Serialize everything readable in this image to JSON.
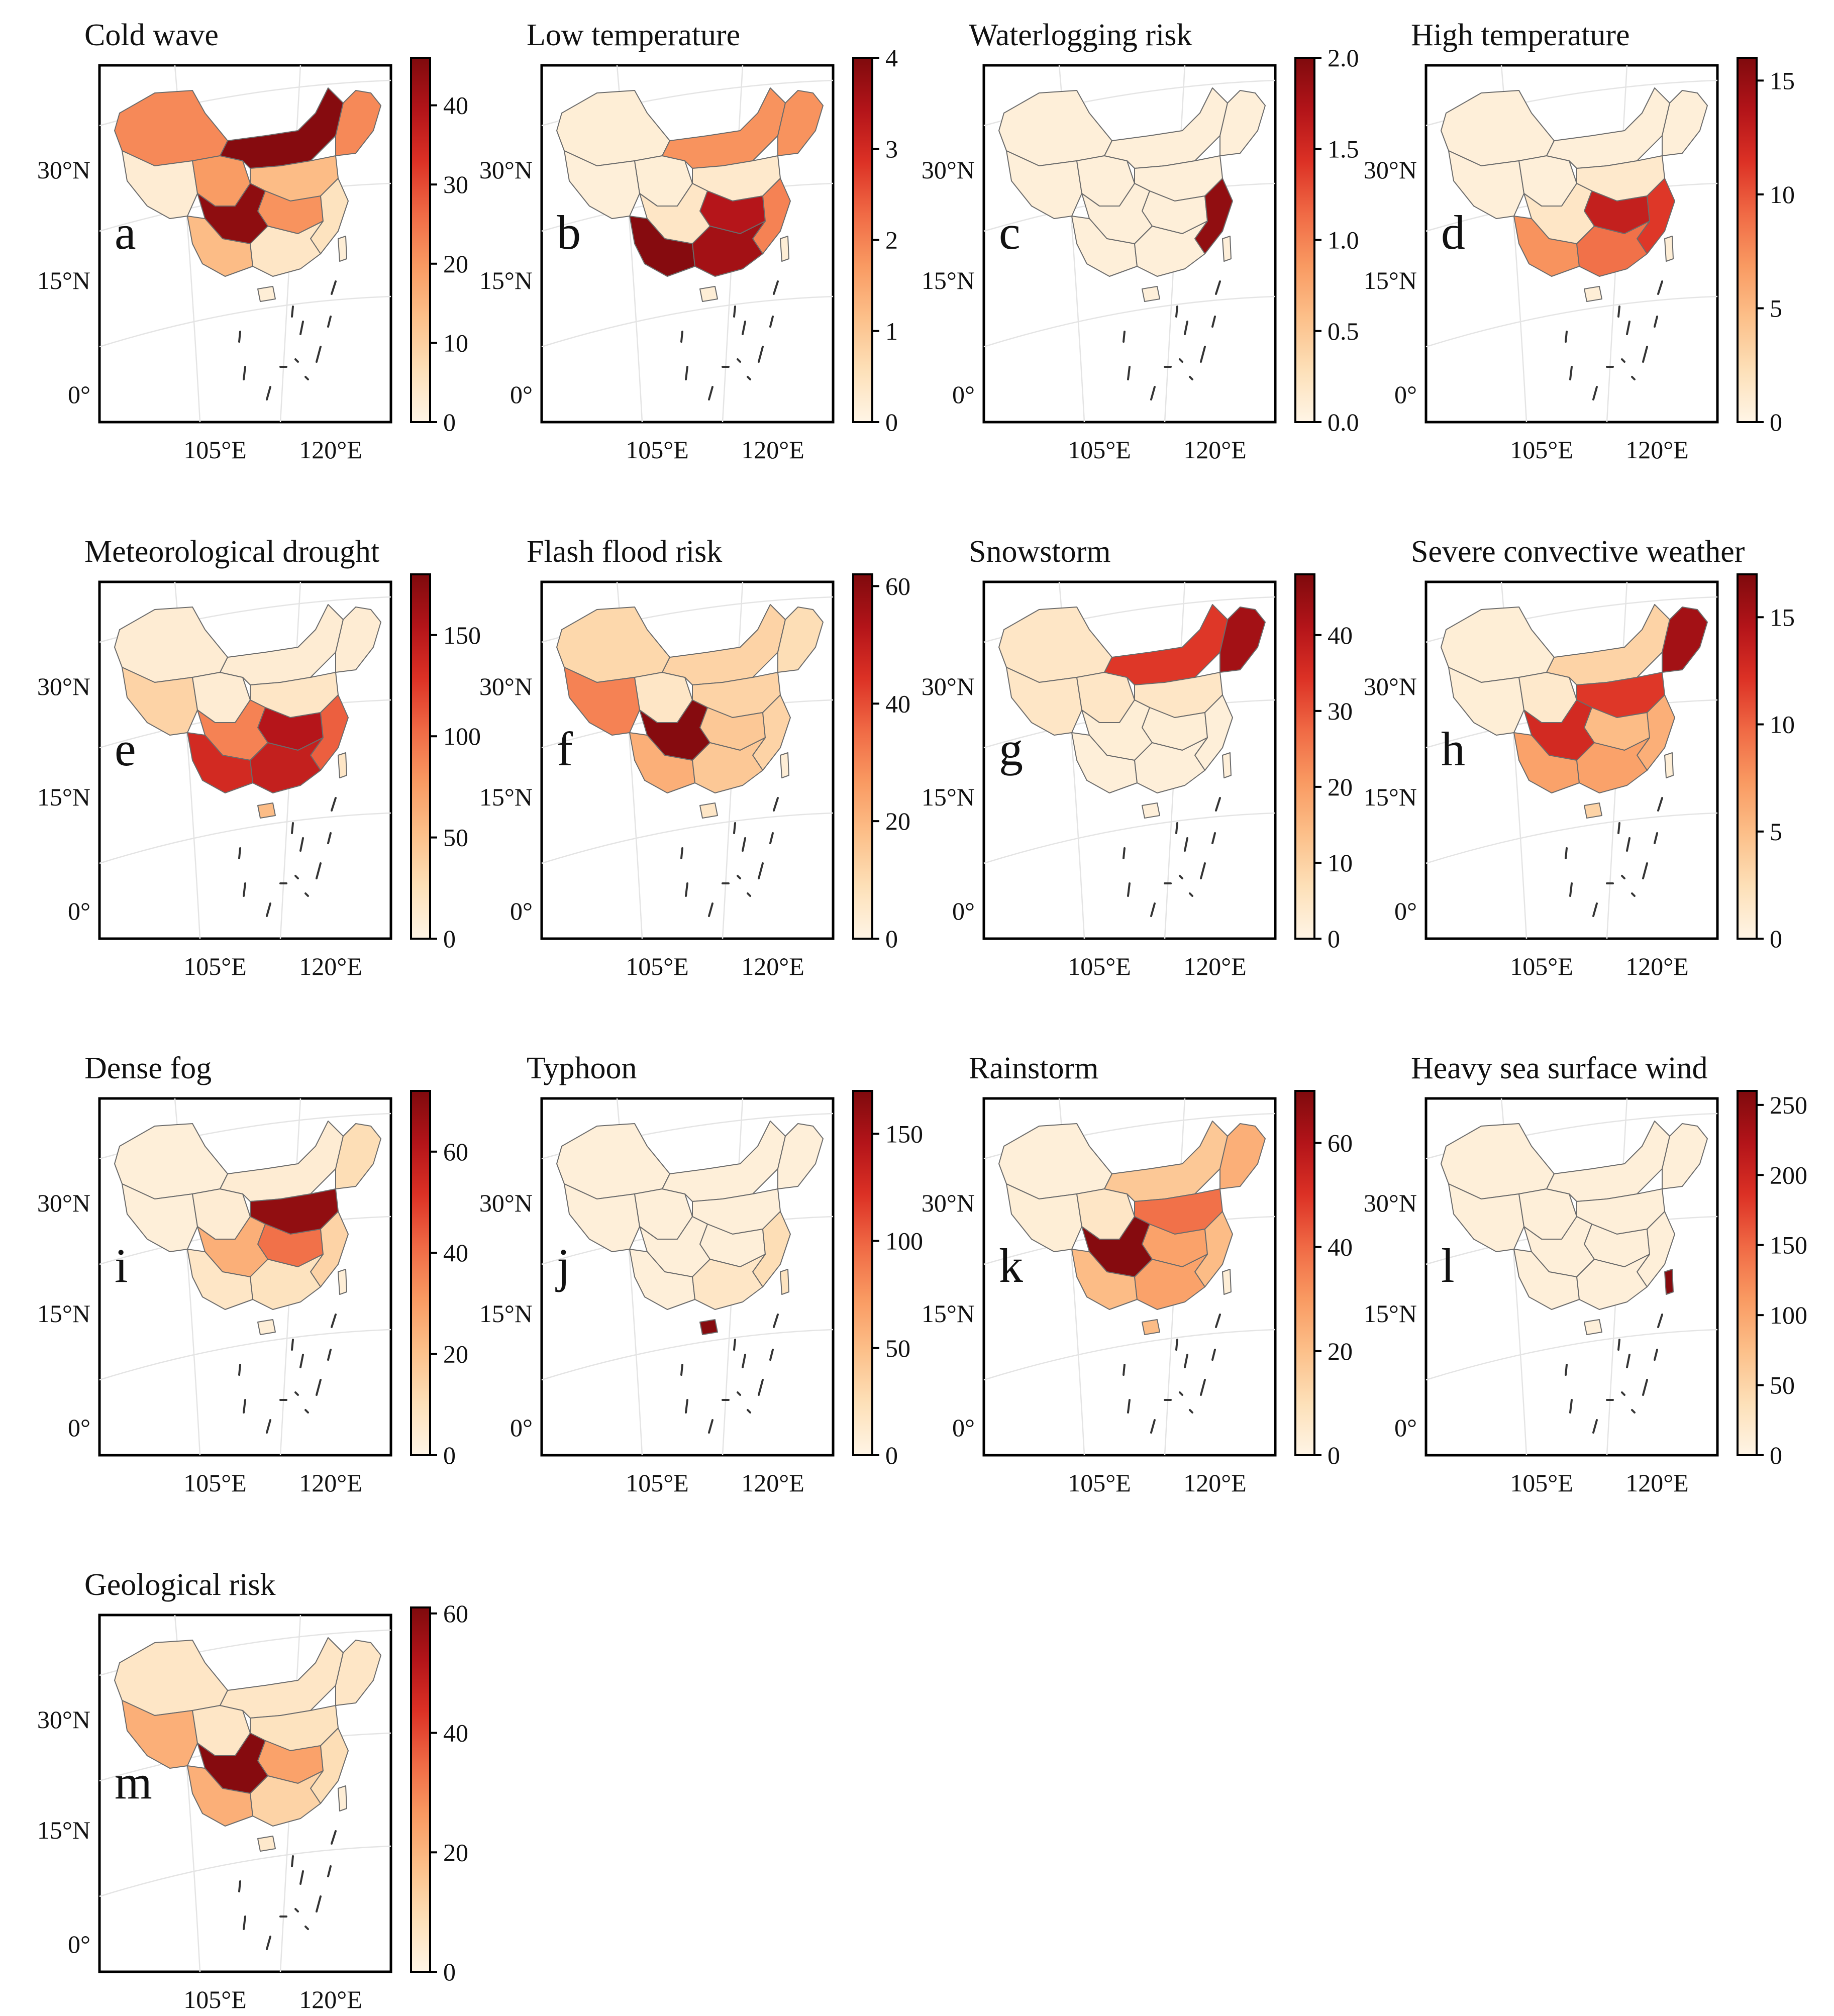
{
  "figure": {
    "axis_labels": {
      "lat": [
        "30°N",
        "15°N",
        "0°"
      ],
      "lon": [
        "105°E",
        "120°E"
      ]
    },
    "colormap": [
      "#fff5e6",
      "#fde0b8",
      "#fcc08a",
      "#f99a62",
      "#f06a45",
      "#dc3125",
      "#b31419",
      "#7f0a0d"
    ],
    "region_names": [
      "northwest",
      "tibet",
      "qinghai",
      "inner-mongolia",
      "northeast",
      "north-china",
      "central",
      "sichuan",
      "yunnan-guizhou",
      "southeast-coast",
      "south",
      "hainan",
      "taiwan"
    ],
    "panels": [
      {
        "letter": "a",
        "title": "Cold wave",
        "max": 46,
        "ticks": [
          0,
          10,
          20,
          30,
          40
        ],
        "regions": {
          "northwest": 0.48,
          "tibet": 0.06,
          "qinghai": 0.42,
          "inner-mongolia": 0.98,
          "northeast": 0.48,
          "north-china": 0.3,
          "central": 0.45,
          "sichuan": 0.96,
          "yunnan-guizhou": 0.3,
          "southeast-coast": 0.12,
          "south": 0.1,
          "hainan": 0.05,
          "taiwan": 0.05
        }
      },
      {
        "letter": "b",
        "title": "Low temperature",
        "max": 4,
        "ticks": [
          0,
          1,
          2,
          3,
          4
        ],
        "regions": {
          "northwest": 0.05,
          "tibet": 0.04,
          "qinghai": 0.05,
          "inner-mongolia": 0.45,
          "northeast": 0.45,
          "north-china": 0.08,
          "central": 0.85,
          "sichuan": 0.1,
          "yunnan-guizhou": 0.98,
          "southeast-coast": 0.5,
          "south": 0.9,
          "hainan": 0.05,
          "taiwan": 0.05
        }
      },
      {
        "letter": "c",
        "title": "Waterlogging risk",
        "max": 2.0,
        "ticks": [
          0.0,
          0.5,
          1.0,
          1.5,
          2.0
        ],
        "regions": {
          "northwest": 0.04,
          "tibet": 0.04,
          "qinghai": 0.04,
          "inner-mongolia": 0.04,
          "northeast": 0.04,
          "north-china": 0.04,
          "central": 0.04,
          "sichuan": 0.04,
          "yunnan-guizhou": 0.04,
          "southeast-coast": 0.95,
          "south": 0.04,
          "hainan": 0.04,
          "taiwan": 0.04
        }
      },
      {
        "letter": "d",
        "title": "High temperature",
        "max": 16,
        "ticks": [
          0,
          5,
          10,
          15
        ],
        "regions": {
          "northwest": 0.04,
          "tibet": 0.04,
          "qinghai": 0.04,
          "inner-mongolia": 0.04,
          "northeast": 0.04,
          "north-china": 0.08,
          "central": 0.8,
          "sichuan": 0.1,
          "yunnan-guizhou": 0.45,
          "southeast-coast": 0.7,
          "south": 0.55,
          "hainan": 0.05,
          "taiwan": 0.05
        }
      },
      {
        "letter": "e",
        "title": "Meteorological drought",
        "max": 180,
        "ticks": [
          0,
          50,
          100,
          150
        ],
        "regions": {
          "northwest": 0.06,
          "tibet": 0.2,
          "qinghai": 0.06,
          "inner-mongolia": 0.06,
          "northeast": 0.06,
          "north-china": 0.1,
          "central": 0.85,
          "sichuan": 0.5,
          "yunnan-guizhou": 0.75,
          "southeast-coast": 0.6,
          "south": 0.8,
          "hainan": 0.3,
          "taiwan": 0.1
        }
      },
      {
        "letter": "f",
        "title": "Flash flood risk",
        "max": 62,
        "ticks": [
          0,
          20,
          40,
          60
        ],
        "regions": {
          "northwest": 0.18,
          "tibet": 0.5,
          "qinghai": 0.1,
          "inner-mongolia": 0.2,
          "northeast": 0.15,
          "north-china": 0.2,
          "central": 0.25,
          "sichuan": 0.98,
          "yunnan-guizhou": 0.35,
          "southeast-coast": 0.2,
          "south": 0.25,
          "hainan": 0.1,
          "taiwan": 0.05
        }
      },
      {
        "letter": "g",
        "title": "Snowstorm",
        "max": 48,
        "ticks": [
          0,
          10,
          20,
          30,
          40
        ],
        "regions": {
          "northwest": 0.1,
          "tibet": 0.1,
          "qinghai": 0.1,
          "inner-mongolia": 0.7,
          "northeast": 0.9,
          "north-china": 0.1,
          "central": 0.05,
          "sichuan": 0.05,
          "yunnan-guizhou": 0.04,
          "southeast-coast": 0.04,
          "south": 0.04,
          "hainan": 0.04,
          "taiwan": 0.04
        }
      },
      {
        "letter": "h",
        "title": "Severe convective weather",
        "max": 17,
        "ticks": [
          0,
          5,
          10,
          15
        ],
        "regions": {
          "northwest": 0.05,
          "tibet": 0.05,
          "qinghai": 0.08,
          "inner-mongolia": 0.2,
          "northeast": 0.9,
          "north-china": 0.7,
          "central": 0.3,
          "sichuan": 0.75,
          "yunnan-guizhou": 0.4,
          "southeast-coast": 0.35,
          "south": 0.4,
          "hainan": 0.2,
          "taiwan": 0.05
        }
      },
      {
        "letter": "i",
        "title": "Dense fog",
        "max": 72,
        "ticks": [
          0,
          20,
          40,
          60
        ],
        "regions": {
          "northwest": 0.04,
          "tibet": 0.04,
          "qinghai": 0.06,
          "inner-mongolia": 0.06,
          "northeast": 0.15,
          "north-china": 0.95,
          "central": 0.55,
          "sichuan": 0.35,
          "yunnan-guizhou": 0.1,
          "southeast-coast": 0.2,
          "south": 0.12,
          "hainan": 0.05,
          "taiwan": 0.05
        }
      },
      {
        "letter": "j",
        "title": "Typhoon",
        "max": 170,
        "ticks": [
          0,
          50,
          100,
          150
        ],
        "regions": {
          "northwest": 0.04,
          "tibet": 0.04,
          "qinghai": 0.04,
          "inner-mongolia": 0.04,
          "northeast": 0.04,
          "north-china": 0.04,
          "central": 0.04,
          "sichuan": 0.04,
          "yunnan-guizhou": 0.04,
          "southeast-coast": 0.15,
          "south": 0.1,
          "hainan": 0.98,
          "taiwan": 0.12
        }
      },
      {
        "letter": "k",
        "title": "Rainstorm",
        "max": 70,
        "ticks": [
          0,
          20,
          40,
          60
        ],
        "regions": {
          "northwest": 0.04,
          "tibet": 0.05,
          "qinghai": 0.1,
          "inner-mongolia": 0.25,
          "northeast": 0.35,
          "north-china": 0.55,
          "central": 0.4,
          "sichuan": 0.98,
          "yunnan-guizhou": 0.3,
          "southeast-coast": 0.3,
          "south": 0.4,
          "hainan": 0.3,
          "taiwan": 0.05
        }
      },
      {
        "letter": "l",
        "title": "Heavy sea surface wind",
        "max": 260,
        "ticks": [
          0,
          50,
          100,
          150,
          200,
          250
        ],
        "regions": {
          "northwest": 0.04,
          "tibet": 0.04,
          "qinghai": 0.04,
          "inner-mongolia": 0.04,
          "northeast": 0.04,
          "north-china": 0.04,
          "central": 0.04,
          "sichuan": 0.04,
          "yunnan-guizhou": 0.04,
          "southeast-coast": 0.04,
          "south": 0.04,
          "hainan": 0.04,
          "taiwan": 0.98
        }
      },
      {
        "letter": "m",
        "title": "Geological risk",
        "max": 61,
        "ticks": [
          0,
          20,
          40,
          60
        ],
        "regions": {
          "northwest": 0.1,
          "tibet": 0.35,
          "qinghai": 0.1,
          "inner-mongolia": 0.1,
          "northeast": 0.1,
          "north-china": 0.12,
          "central": 0.4,
          "sichuan": 0.98,
          "yunnan-guizhou": 0.35,
          "southeast-coast": 0.15,
          "south": 0.2,
          "hainan": 0.08,
          "taiwan": 0.05
        }
      }
    ]
  }
}
